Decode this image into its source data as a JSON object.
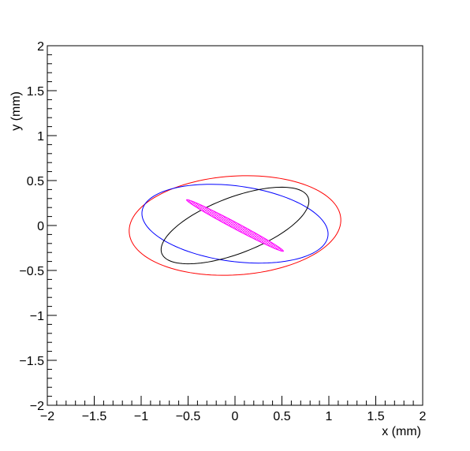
{
  "chart_data": {
    "type": "ellipse",
    "x_label": "x (mm)",
    "y_label": "y (mm)",
    "xlim": [
      -2,
      2
    ],
    "ylim": [
      -2,
      2
    ],
    "xticks": [
      {
        "value": -2,
        "label": "−2"
      },
      {
        "value": -1.5,
        "label": "−1.5"
      },
      {
        "value": -1,
        "label": "−1"
      },
      {
        "value": -0.5,
        "label": "−0.5"
      },
      0,
      0.5,
      1,
      1.5,
      2
    ],
    "yticks": [
      {
        "value": -2,
        "label": "−2"
      },
      {
        "value": -1.5,
        "label": "−1.5"
      },
      {
        "value": -1,
        "label": "−1"
      },
      {
        "value": -0.5,
        "label": "−0.5"
      },
      0,
      0.5,
      1,
      1.5,
      2
    ],
    "ellipses": [
      {
        "color": "#ff0000",
        "cx": 0,
        "cy": 0,
        "rx": 1.13,
        "ry": 0.55,
        "angle": 4,
        "filled": false
      },
      {
        "color": "#0000ff",
        "cx": 0,
        "cy": 0.02,
        "rx": 1.0,
        "ry": 0.42,
        "angle": -8,
        "filled": false
      },
      {
        "color": "#000000",
        "cx": 0,
        "cy": 0,
        "rx": 0.84,
        "ry": 0.31,
        "angle": 22,
        "filled": false
      },
      {
        "color": "#ff00ff",
        "cx": 0,
        "cy": 0,
        "rx": 0.59,
        "ry": 0.035,
        "angle": -29,
        "filled": true
      }
    ]
  }
}
